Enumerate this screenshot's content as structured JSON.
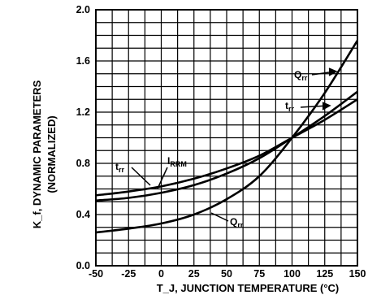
{
  "chart_data": {
    "type": "line",
    "xlabel": "T_J, JUNCTION TEMPERATURE (°C)",
    "ylabel_line1": "K_f, DYNAMIC PARAMETERS",
    "ylabel_line2": "(NORMALIZED)",
    "xlim": [
      -50,
      150
    ],
    "ylim": [
      0.0,
      2.0
    ],
    "x_ticks": [
      -50,
      -25,
      0,
      25,
      50,
      75,
      100,
      125,
      150
    ],
    "x_tick_labels": [
      "-50",
      "-25",
      "0",
      "25",
      "50",
      "75",
      "100",
      "125",
      "150"
    ],
    "y_ticks": [
      0.0,
      0.4,
      0.8,
      1.2,
      1.6,
      2.0
    ],
    "y_tick_labels": [
      "0.0",
      "0.4",
      "0.8",
      "1.2",
      "1.6",
      "2.0"
    ],
    "grid": true,
    "series": [
      {
        "name": "Qrr",
        "label_main": "Q",
        "label_sub": "rr",
        "x": [
          -50,
          -25,
          0,
          25,
          50,
          75,
          100,
          125,
          150
        ],
        "values": [
          0.26,
          0.29,
          0.33,
          0.4,
          0.52,
          0.7,
          1.0,
          1.35,
          1.76
        ]
      },
      {
        "name": "trr",
        "label_main": "t",
        "label_sub": "rr",
        "x": [
          -50,
          -25,
          0,
          25,
          50,
          75,
          100,
          125,
          150
        ],
        "values": [
          0.51,
          0.53,
          0.57,
          0.63,
          0.72,
          0.84,
          1.0,
          1.17,
          1.36
        ]
      },
      {
        "name": "IRRM",
        "label_main": "I",
        "label_sub": "RRM",
        "x": [
          -50,
          -25,
          0,
          25,
          50,
          75,
          100,
          125,
          150
        ],
        "values": [
          0.55,
          0.58,
          0.62,
          0.68,
          0.76,
          0.86,
          1.0,
          1.14,
          1.3
        ]
      }
    ]
  }
}
